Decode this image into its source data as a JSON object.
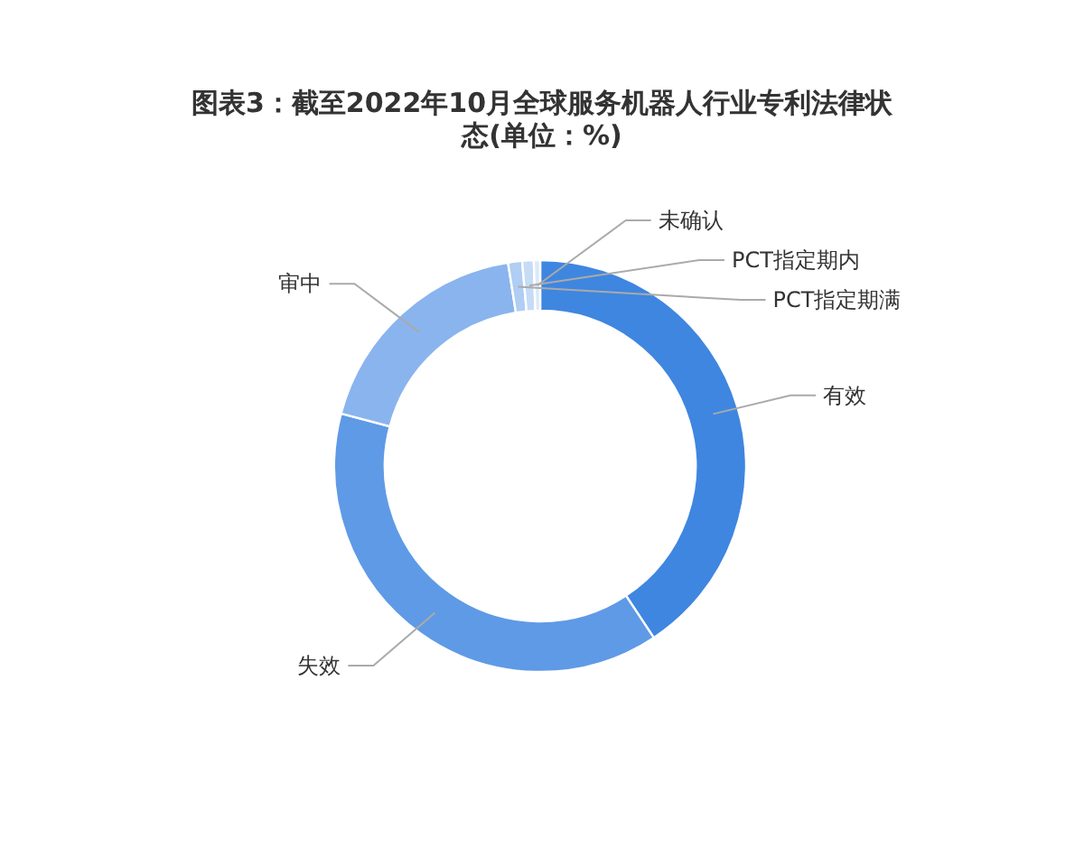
{
  "chart_data": {
    "type": "donut",
    "title": "图表3：截至2022年10月全球服务机器人行业专利法律状态(单位：%)",
    "categories": [
      "有效",
      "失效",
      "审中",
      "PCT指定期满",
      "PCT指定期内",
      "未确认"
    ],
    "values": [
      40.7,
      38.4,
      18.4,
      1.1,
      0.9,
      0.5
    ],
    "colors": [
      "#3f86e0",
      "#5f9ae6",
      "#8ab4ee",
      "#b0cdf3",
      "#c6dbf6",
      "#dce9f9"
    ]
  }
}
